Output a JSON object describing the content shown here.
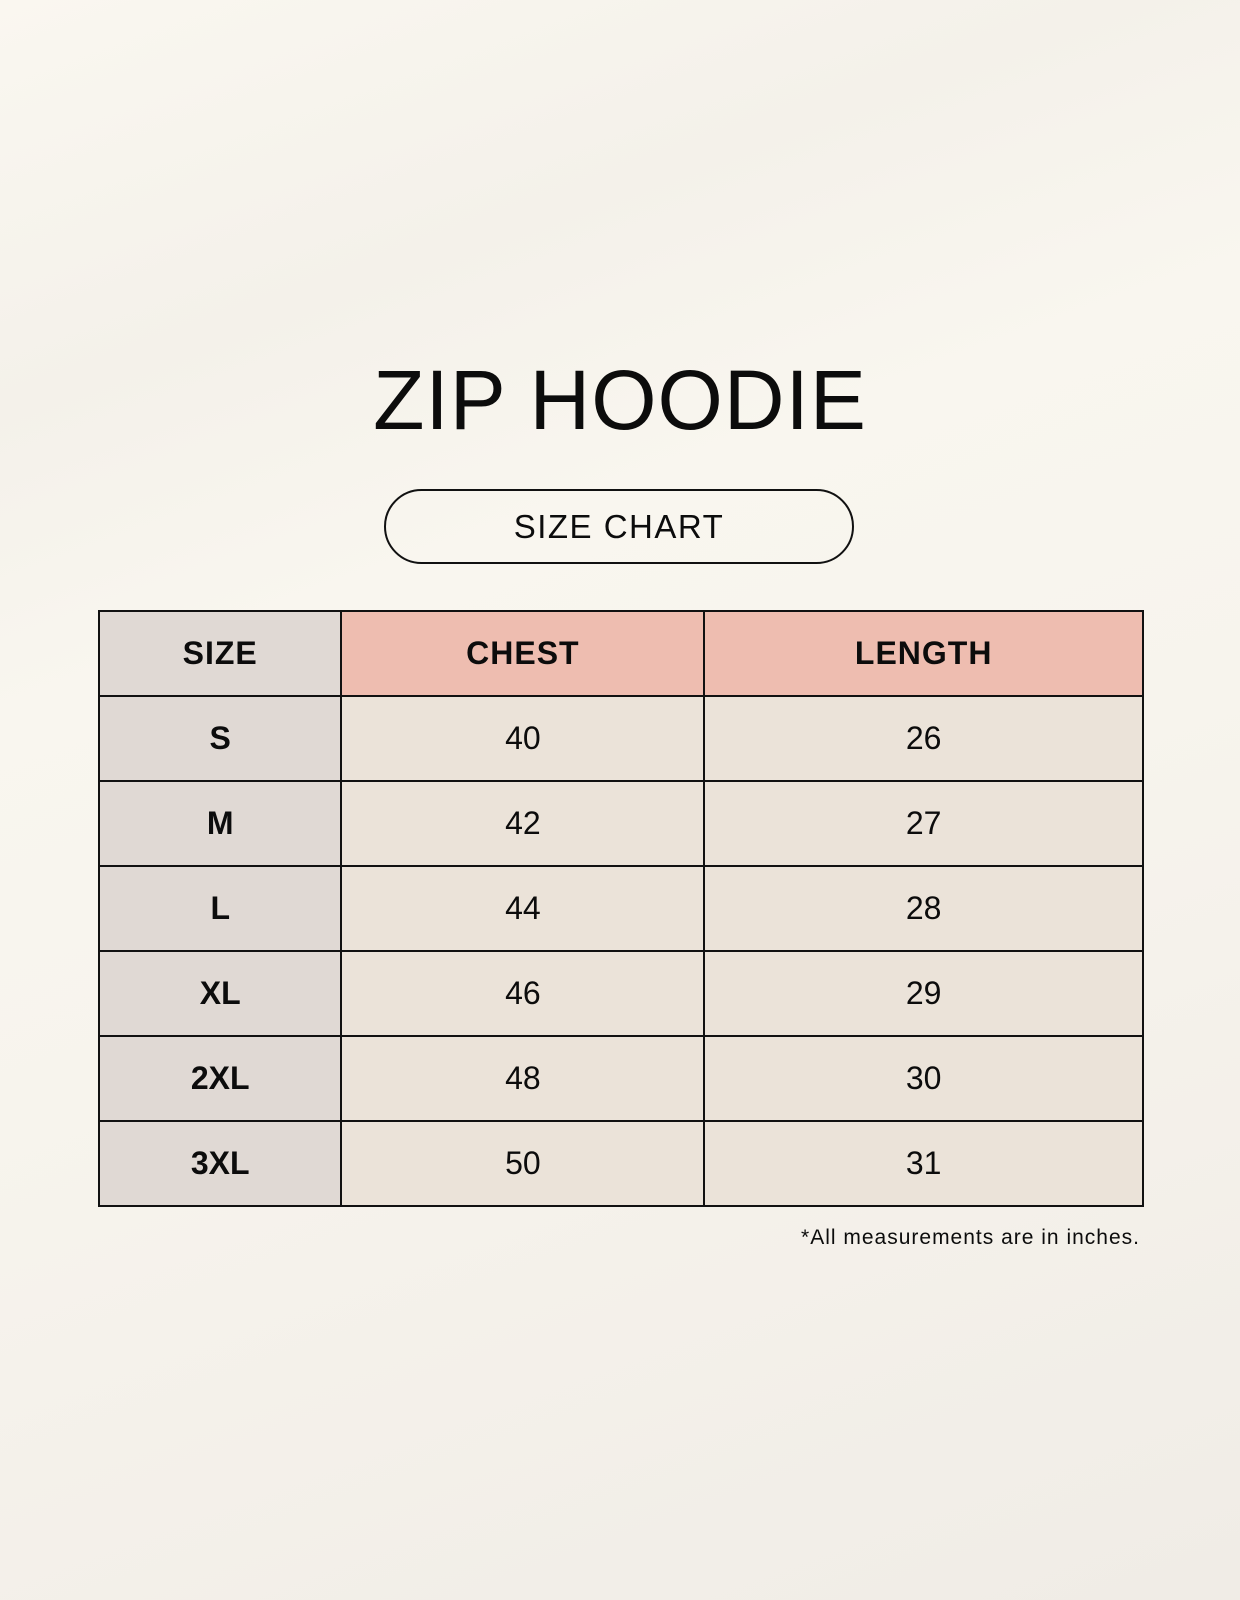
{
  "title": "ZIP HOODIE",
  "subtitle": "SIZE CHART",
  "table": {
    "headers": [
      "SIZE",
      "CHEST",
      "LENGTH"
    ],
    "rows": [
      [
        "S",
        "40",
        "26"
      ],
      [
        "M",
        "42",
        "27"
      ],
      [
        "L",
        "44",
        "28"
      ],
      [
        "XL",
        "46",
        "29"
      ],
      [
        "2XL",
        "48",
        "30"
      ],
      [
        "3XL",
        "50",
        "31"
      ]
    ]
  },
  "note": "*All measurements are in inches.",
  "colors": {
    "size_column": "#e0d9d4",
    "header_accent": "#eebdb0",
    "cell": "#ebe3d9"
  }
}
